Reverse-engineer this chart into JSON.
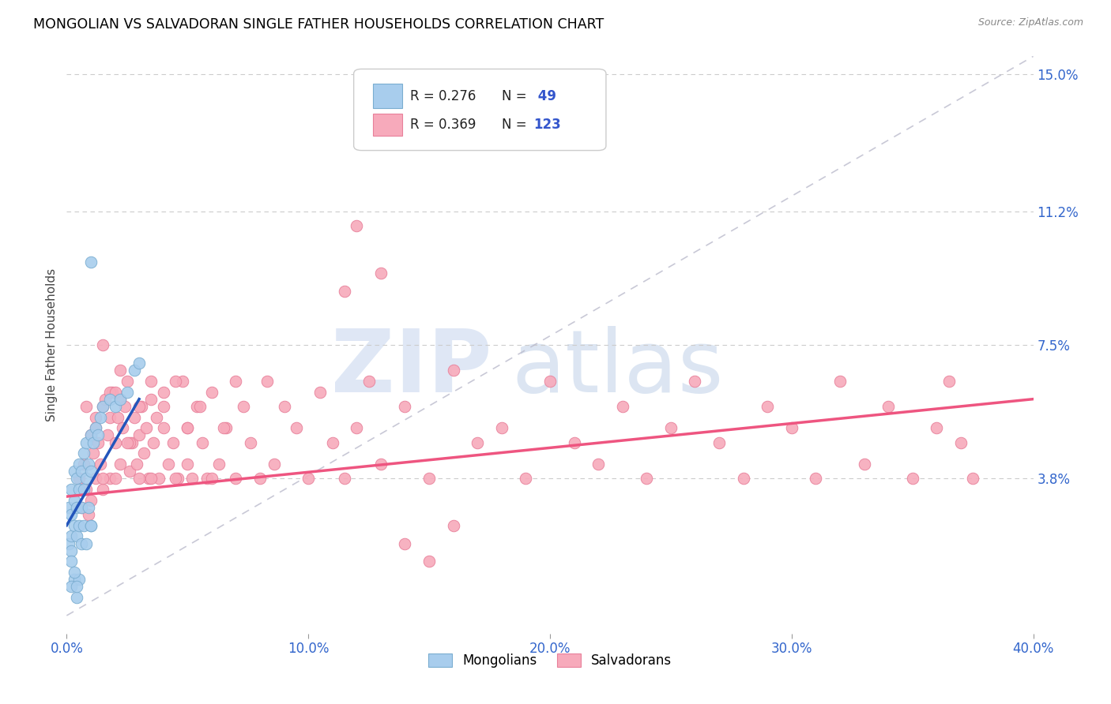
{
  "title": "MONGOLIAN VS SALVADORAN SINGLE FATHER HOUSEHOLDS CORRELATION CHART",
  "source": "Source: ZipAtlas.com",
  "ylabel": "Single Father Households",
  "xlim": [
    0.0,
    0.4
  ],
  "ylim": [
    -0.005,
    0.155
  ],
  "xticks": [
    0.0,
    0.1,
    0.2,
    0.3,
    0.4
  ],
  "yticks_right": [
    0.038,
    0.075,
    0.112,
    0.15
  ],
  "ytick_labels_right": [
    "3.8%",
    "7.5%",
    "11.2%",
    "15.0%"
  ],
  "xtick_labels": [
    "0.0%",
    "10.0%",
    "20.0%",
    "30.0%",
    "40.0%"
  ],
  "mongolian_color": "#A8CDED",
  "salvadoran_color": "#F7AABB",
  "mongolian_edge": "#7AADD0",
  "salvadoran_edge": "#E8809A",
  "blue_line_color": "#2255BB",
  "pink_line_color": "#EE5580",
  "diagonal_color": "#BBBBCC",
  "R_mongolian": 0.276,
  "N_mongolian": 49,
  "R_salvadoran": 0.369,
  "N_salvadoran": 123,
  "legend_color": "#3355CC",
  "watermark_zip_color": "#C5D5EE",
  "watermark_atlas_color": "#A8C0E0",
  "mong_x": [
    0.001,
    0.001,
    0.002,
    0.002,
    0.002,
    0.002,
    0.002,
    0.003,
    0.003,
    0.003,
    0.003,
    0.004,
    0.004,
    0.004,
    0.004,
    0.005,
    0.005,
    0.005,
    0.005,
    0.006,
    0.006,
    0.006,
    0.007,
    0.007,
    0.007,
    0.008,
    0.008,
    0.008,
    0.009,
    0.009,
    0.01,
    0.01,
    0.01,
    0.011,
    0.012,
    0.013,
    0.014,
    0.015,
    0.018,
    0.02,
    0.022,
    0.025,
    0.028,
    0.03,
    0.002,
    0.003,
    0.004,
    0.01,
    0.01
  ],
  "mong_y": [
    0.03,
    0.02,
    0.035,
    0.028,
    0.022,
    0.018,
    0.015,
    0.04,
    0.032,
    0.025,
    0.01,
    0.038,
    0.03,
    0.022,
    0.005,
    0.042,
    0.035,
    0.025,
    0.01,
    0.04,
    0.03,
    0.02,
    0.045,
    0.035,
    0.025,
    0.048,
    0.038,
    0.02,
    0.042,
    0.03,
    0.05,
    0.04,
    0.025,
    0.048,
    0.052,
    0.05,
    0.055,
    0.058,
    0.06,
    0.058,
    0.06,
    0.062,
    0.068,
    0.07,
    0.008,
    0.012,
    0.008,
    0.098,
    0.025
  ],
  "salv_x": [
    0.005,
    0.006,
    0.007,
    0.008,
    0.009,
    0.01,
    0.01,
    0.011,
    0.012,
    0.012,
    0.013,
    0.014,
    0.015,
    0.015,
    0.016,
    0.017,
    0.018,
    0.018,
    0.019,
    0.02,
    0.02,
    0.021,
    0.022,
    0.022,
    0.023,
    0.024,
    0.025,
    0.026,
    0.027,
    0.028,
    0.029,
    0.03,
    0.031,
    0.032,
    0.033,
    0.034,
    0.035,
    0.036,
    0.037,
    0.038,
    0.04,
    0.042,
    0.044,
    0.046,
    0.048,
    0.05,
    0.052,
    0.054,
    0.056,
    0.058,
    0.06,
    0.063,
    0.066,
    0.07,
    0.073,
    0.076,
    0.08,
    0.083,
    0.086,
    0.09,
    0.095,
    0.1,
    0.105,
    0.11,
    0.115,
    0.12,
    0.125,
    0.13,
    0.14,
    0.15,
    0.16,
    0.17,
    0.18,
    0.19,
    0.2,
    0.21,
    0.22,
    0.23,
    0.24,
    0.25,
    0.26,
    0.27,
    0.28,
    0.29,
    0.3,
    0.31,
    0.32,
    0.33,
    0.34,
    0.35,
    0.36,
    0.365,
    0.37,
    0.375,
    0.008,
    0.012,
    0.015,
    0.018,
    0.022,
    0.026,
    0.03,
    0.035,
    0.04,
    0.045,
    0.05,
    0.055,
    0.06,
    0.065,
    0.07,
    0.015,
    0.02,
    0.025,
    0.03,
    0.035,
    0.04,
    0.045,
    0.05,
    0.12,
    0.13,
    0.14,
    0.15,
    0.16,
    0.115
  ],
  "salv_y": [
    0.038,
    0.03,
    0.042,
    0.035,
    0.028,
    0.05,
    0.032,
    0.045,
    0.055,
    0.038,
    0.048,
    0.042,
    0.058,
    0.035,
    0.06,
    0.05,
    0.055,
    0.038,
    0.062,
    0.048,
    0.038,
    0.055,
    0.06,
    0.042,
    0.052,
    0.058,
    0.065,
    0.04,
    0.048,
    0.055,
    0.042,
    0.05,
    0.058,
    0.045,
    0.052,
    0.038,
    0.06,
    0.048,
    0.055,
    0.038,
    0.062,
    0.042,
    0.048,
    0.038,
    0.065,
    0.052,
    0.038,
    0.058,
    0.048,
    0.038,
    0.062,
    0.042,
    0.052,
    0.038,
    0.058,
    0.048,
    0.038,
    0.065,
    0.042,
    0.058,
    0.052,
    0.038,
    0.062,
    0.048,
    0.038,
    0.052,
    0.065,
    0.042,
    0.058,
    0.038,
    0.068,
    0.048,
    0.052,
    0.038,
    0.065,
    0.048,
    0.042,
    0.058,
    0.038,
    0.052,
    0.065,
    0.048,
    0.038,
    0.058,
    0.052,
    0.038,
    0.065,
    0.042,
    0.058,
    0.038,
    0.052,
    0.065,
    0.048,
    0.038,
    0.058,
    0.052,
    0.038,
    0.062,
    0.068,
    0.048,
    0.058,
    0.038,
    0.052,
    0.065,
    0.042,
    0.058,
    0.038,
    0.052,
    0.065,
    0.075,
    0.062,
    0.048,
    0.038,
    0.065,
    0.058,
    0.038,
    0.052,
    0.108,
    0.095,
    0.02,
    0.015,
    0.025,
    0.09
  ]
}
